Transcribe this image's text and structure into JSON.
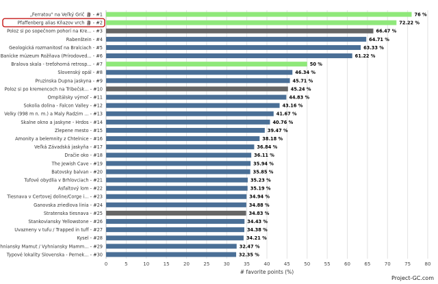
{
  "chart_data": {
    "type": "bar",
    "orientation": "horizontal",
    "xlabel": "# favorite points (%)",
    "xlim": [
      0,
      80
    ],
    "xticks": [
      0,
      5,
      10,
      15,
      20,
      25,
      30,
      35,
      40,
      45,
      50,
      55,
      60,
      65,
      70,
      75,
      80
    ],
    "grid": true,
    "value_suffix": " %",
    "credit": "Project-GC.com",
    "highlighted_rank": "#2",
    "colors": {
      "green": "#8fe87a",
      "gray": "#666666",
      "blue": "#4a6f96",
      "highlight_border": "#c00000"
    },
    "categories": [
      "„Ferratou\" na Veľký Grič 🗿 - #1",
      "Pfaffenberg alias Kňazov vrch 🗿 - #2",
      "Poloz si po sopečnom pohorí na Kre... - #3",
      "Rabenštein - #4",
      "Geologická rozmanitosť na Bralciach - #5",
      "Banícke múzeum Rožňava (Prírodoved... - #6",
      "Bralova skala - treťohorná retrosp... - #7",
      "Slovenský opál - #8",
      "Pruzinska Dupna jaskyna - #9",
      "Poloz si po kremencoch na Tribečsk... - #10",
      "Ompitálsky výmoľ - #11",
      "Sokolia dolina - Falcon Valley - #12",
      "Velky (998 m n. m.) a Maly Radzim ... - #13",
      "Skalne okno a jaskyne - Hrdos - #14",
      "Zlepene mesto - #15",
      "Amonity a belemnity z Chtelnice - #16",
      "Veľká Závadská jaskyňa - #17",
      "Dračie oko - #18",
      "The Jewish Cave - #19",
      "Batovsky balvan - #20",
      "Tufové obydlia v Brhlovciach - #21",
      "Asfaltový lom - #22",
      "Tiesnava v Certovej doline/Corge i... - #23",
      "Ganovska zriedlova linia - #24",
      "Stratenska tiesnava - #25",
      "Stankoviansky Yellowstone - #26",
      "Uvazneny v tufu / Trapped in tuff - #27",
      "Kysel - #28",
      "Vyhniansky Mamut / Vyhniansky Mamm... - #29",
      "Typové lokality Slovenska - Pernek... - #30"
    ],
    "values": [
      76,
      72.22,
      66.47,
      64.71,
      63.33,
      61.22,
      50,
      46.34,
      45.71,
      45.24,
      44.83,
      43.16,
      41.67,
      40.76,
      39.47,
      38.18,
      36.84,
      36.11,
      35.94,
      35.85,
      35.23,
      35.19,
      34.94,
      34.88,
      34.83,
      34.43,
      34.38,
      34.21,
      32.47,
      32.35
    ],
    "value_labels": [
      "76 %",
      "72.22 %",
      "66.47 %",
      "64.71 %",
      "63.33 %",
      "61.22 %",
      "50 %",
      "46.34 %",
      "45.71 %",
      "45.24 %",
      "44.83 %",
      "43.16 %",
      "41.67 %",
      "40.76 %",
      "39.47 %",
      "38.18 %",
      "36.84 %",
      "36.11 %",
      "35.94 %",
      "35.85 %",
      "35.23 %",
      "35.19 %",
      "34.94 %",
      "34.88 %",
      "34.83 %",
      "34.43 %",
      "34.38 %",
      "34.21 %",
      "32.47 %",
      "32.35 %"
    ],
    "bar_colors": [
      "green",
      "green",
      "gray",
      "blue",
      "blue",
      "blue",
      "green",
      "blue",
      "blue",
      "gray",
      "blue",
      "blue",
      "blue",
      "blue",
      "blue",
      "blue",
      "blue",
      "blue",
      "blue",
      "blue",
      "blue",
      "blue",
      "blue",
      "blue",
      "gray",
      "blue",
      "blue",
      "blue",
      "blue",
      "blue"
    ]
  }
}
